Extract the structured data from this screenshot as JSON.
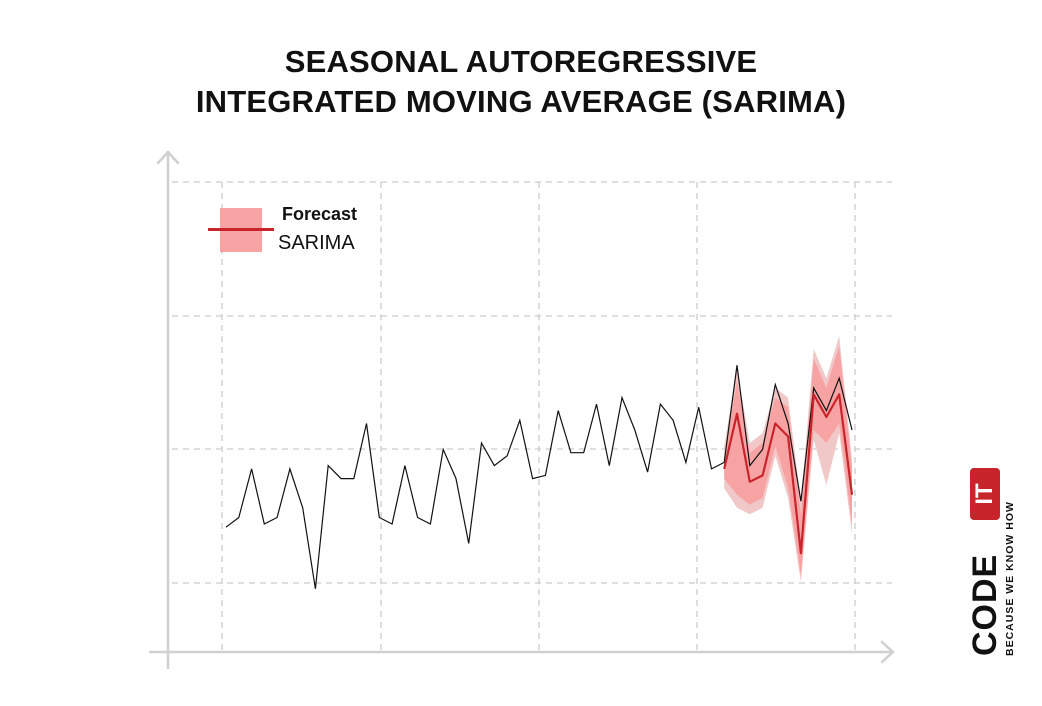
{
  "chart_data": {
    "type": "line",
    "title_lines": [
      "SEASONAL AUTOREGRESSIVE",
      "INTEGRATED MOVING AVERAGE (SARIMA)"
    ],
    "xlabel": "",
    "ylabel": "",
    "xlim": [
      0,
      49
    ],
    "ylim": [
      0,
      10
    ],
    "grid": true,
    "legend_position": "top-left",
    "legend": {
      "title": "Forecast",
      "label": "SARIMA"
    },
    "series": [
      {
        "role": "actual",
        "color": "#111111",
        "x": [
          0,
          1,
          2,
          3,
          4,
          5,
          6,
          7,
          8,
          9,
          10,
          11,
          12,
          13,
          14,
          15,
          16,
          17,
          18,
          19,
          20,
          21,
          22,
          23,
          24,
          25,
          26,
          27,
          28,
          29,
          30,
          31,
          32,
          33,
          34,
          35,
          36,
          37,
          38,
          39,
          40,
          41,
          42,
          43,
          44,
          45,
          46,
          47,
          48,
          49
        ],
        "y": [
          2.0,
          2.3,
          3.8,
          2.1,
          2.3,
          3.8,
          2.6,
          0.1,
          3.9,
          3.5,
          3.5,
          5.2,
          2.3,
          2.1,
          3.9,
          2.3,
          2.1,
          4.4,
          3.5,
          1.5,
          4.6,
          3.9,
          4.2,
          5.3,
          3.5,
          3.6,
          5.6,
          4.3,
          4.3,
          5.8,
          3.9,
          6.0,
          5.0,
          3.7,
          5.8,
          5.3,
          4.0,
          5.7,
          3.8,
          4.0,
          7.0,
          3.9,
          4.4,
          6.4,
          5.2,
          2.8,
          6.3,
          5.6,
          6.6,
          5.0
        ]
      },
      {
        "role": "forecast",
        "color": "#c8242b",
        "x": [
          39,
          40,
          41,
          42,
          43,
          44,
          45,
          46,
          47,
          48,
          49
        ],
        "y": [
          3.8,
          5.5,
          3.4,
          3.6,
          5.2,
          4.8,
          1.2,
          6.1,
          5.4,
          6.1,
          3.0
        ],
        "band_inner": [
          [
            3.5,
            4.2
          ],
          [
            3.0,
            6.5
          ],
          [
            2.7,
            4.3
          ],
          [
            2.9,
            4.6
          ],
          [
            4.5,
            6.0
          ],
          [
            3.2,
            5.7
          ],
          [
            0.5,
            2.4
          ],
          [
            5.0,
            7.2
          ],
          [
            4.6,
            6.3
          ],
          [
            5.2,
            7.6
          ],
          [
            2.1,
            3.8
          ]
        ],
        "band_outer": [
          [
            3.2,
            4.5
          ],
          [
            2.6,
            6.9
          ],
          [
            2.4,
            4.6
          ],
          [
            2.6,
            4.9
          ],
          [
            4.2,
            6.3
          ],
          [
            2.9,
            6.0
          ],
          [
            0.3,
            2.8
          ],
          [
            4.7,
            7.5
          ],
          [
            3.3,
            6.6
          ],
          [
            4.9,
            7.9
          ],
          [
            1.8,
            4.1
          ]
        ]
      }
    ]
  },
  "colors": {
    "band_inner": "#f8a3a3",
    "band_outer": "#f1c8c8",
    "forecast_line": "#c8242b",
    "actual_line": "#111111",
    "grid": "#cccccc",
    "axis": "#d0d0d0"
  },
  "logo": {
    "word": "CODE",
    "badge": "IT",
    "tagline": "BECAUSE WE KNOW HOW"
  }
}
